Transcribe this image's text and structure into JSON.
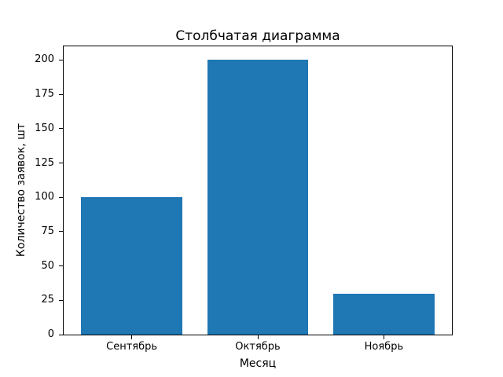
{
  "chart_data": {
    "type": "bar",
    "title": "Столбчатая диаграмма",
    "xlabel": "Месяц",
    "ylabel": "Количество заявок, шт",
    "categories": [
      "Сентябрь",
      "Октябрь",
      "Ноябрь"
    ],
    "values": [
      100,
      200,
      30
    ],
    "yticks": [
      0,
      25,
      50,
      75,
      100,
      125,
      150,
      175,
      200
    ],
    "ylim": [
      0,
      210
    ],
    "bar_color": "#1f77b4",
    "background_color": "#ffffff",
    "spine_color": "#000000",
    "grid": false,
    "legend": "none"
  }
}
